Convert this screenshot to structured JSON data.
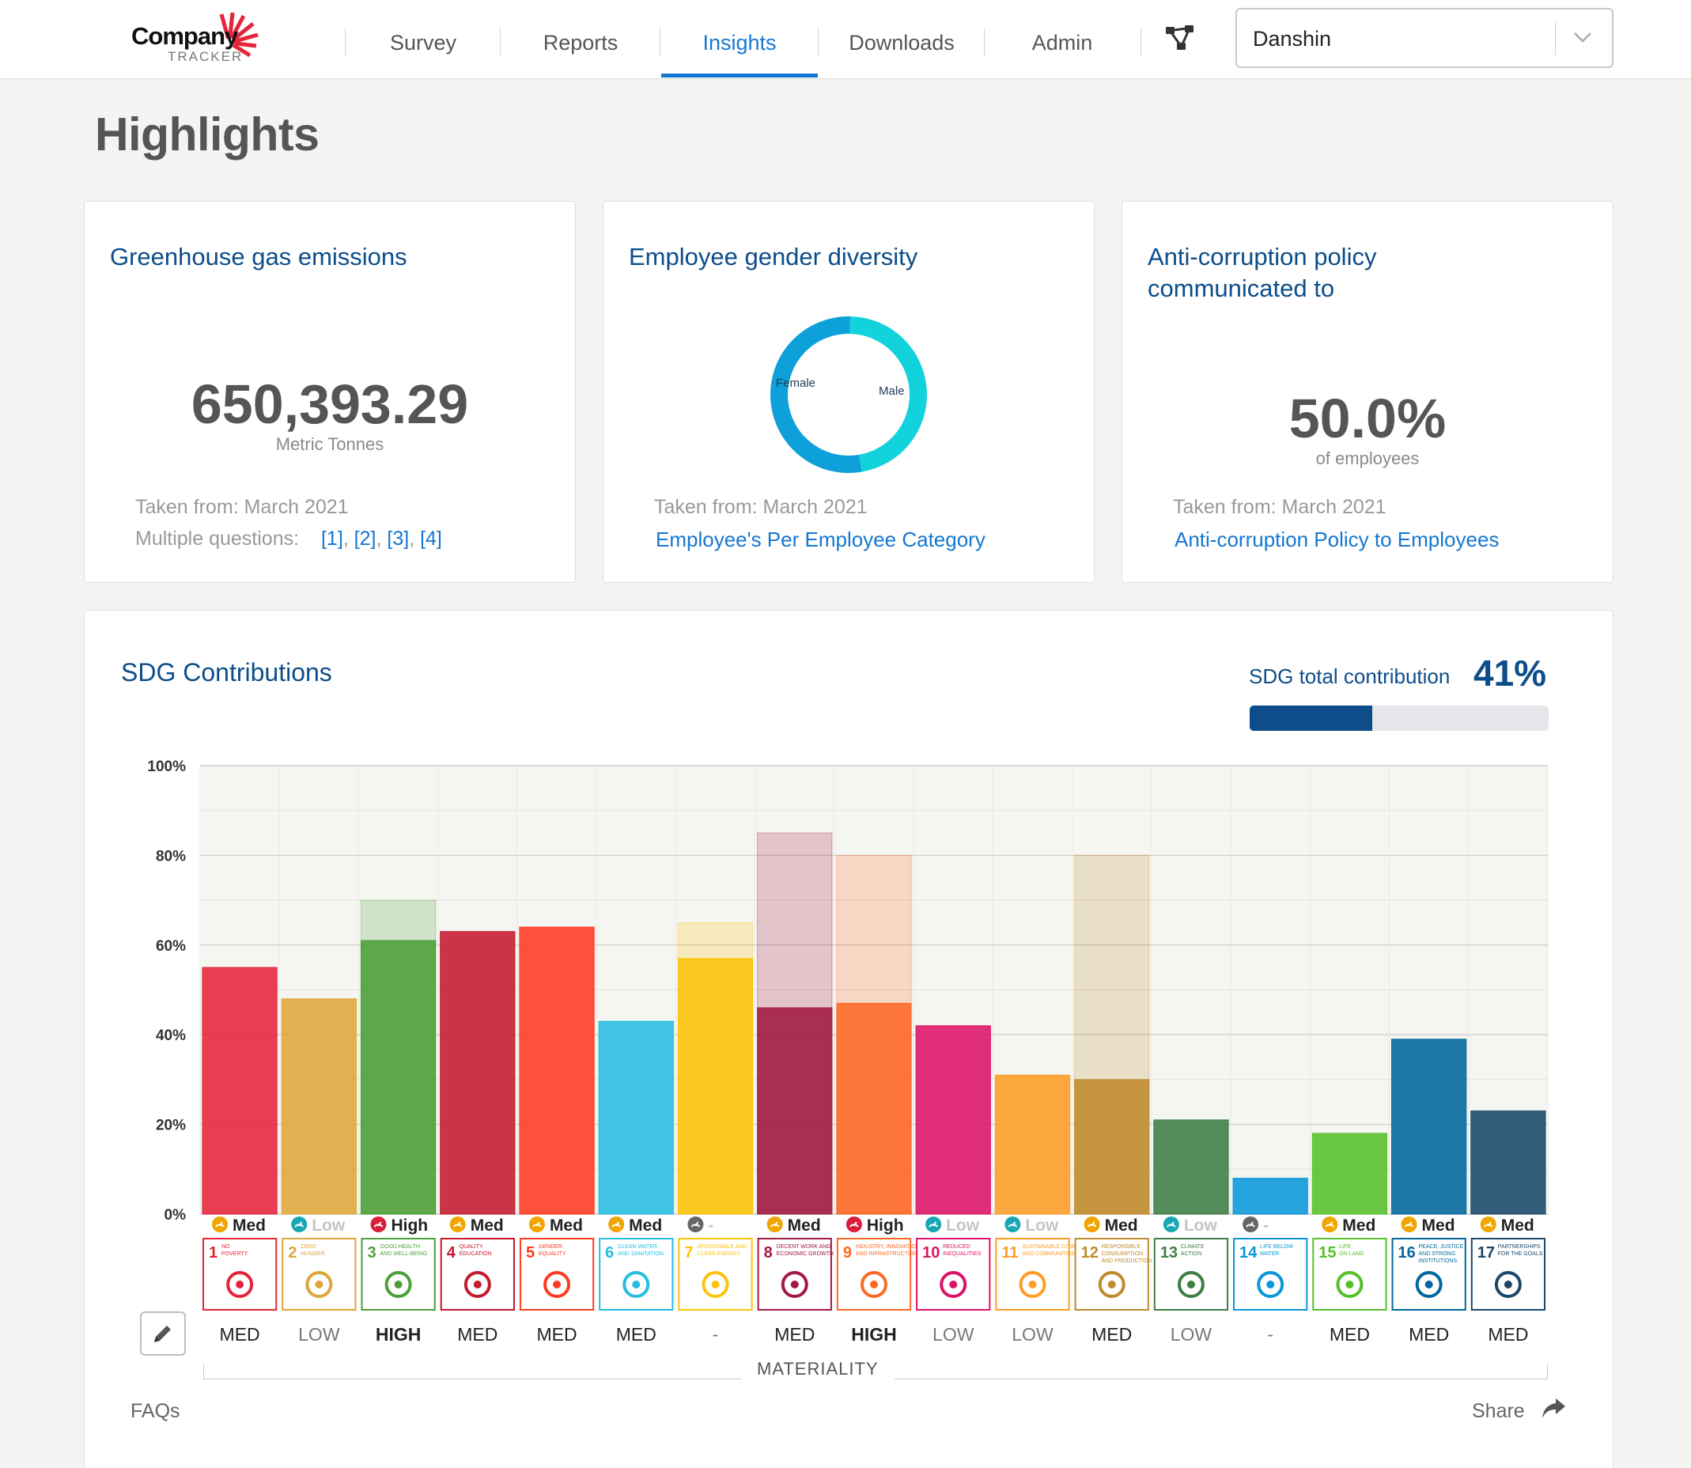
{
  "nav": {
    "logo_word": "Company",
    "logo_sub": "TRACKER",
    "items": [
      {
        "label": "Survey",
        "active": false
      },
      {
        "label": "Reports",
        "active": false
      },
      {
        "label": "Insights",
        "active": true
      },
      {
        "label": "Downloads",
        "active": false
      },
      {
        "label": "Admin",
        "active": false
      }
    ],
    "company_select": "Danshin"
  },
  "page": {
    "title": "Highlights"
  },
  "cards": {
    "ghg": {
      "title": "Greenhouse gas emissions",
      "value": "650,393.29",
      "unit": "Metric Tonnes",
      "taken": "Taken from: March 2021",
      "multiple_label": "Multiple questions:",
      "links": [
        "[1]",
        "[2]",
        "[3]",
        "[4]"
      ]
    },
    "gender": {
      "title": "Employee gender diversity",
      "segments": [
        {
          "label": "Female",
          "value": 0.47,
          "color": "#12d2dc"
        },
        {
          "label": "Male",
          "value": 0.53,
          "color": "#0ea0d8"
        }
      ],
      "taken": "Taken from: March 2021",
      "link": "Employee's Per Employee Category"
    },
    "anticorruption": {
      "title_line1": "Anti-corruption policy",
      "title_line2": "communicated to",
      "value": "50.0%",
      "unit": "of employees",
      "taken": "Taken from: March 2021",
      "link": "Anti-corruption Policy to Employees"
    }
  },
  "sdg": {
    "title": "SDG Contributions",
    "total_label": "SDG total contribution",
    "total_value": "41%",
    "total_fraction": 0.41,
    "materiality_caption": "MATERIALITY",
    "faqs": "FAQs",
    "share": "Share"
  },
  "chart_data": {
    "type": "bar",
    "ylim": [
      0,
      100
    ],
    "yticks": [
      "0%",
      "20%",
      "40%",
      "60%",
      "80%",
      "100%"
    ],
    "categories": [
      "1",
      "2",
      "3",
      "4",
      "5",
      "6",
      "7",
      "8",
      "9",
      "10",
      "11",
      "12",
      "13",
      "14",
      "15",
      "16",
      "17"
    ],
    "series": [
      {
        "name": "Contribution",
        "values": [
          55,
          48,
          61,
          63,
          64,
          43,
          57,
          46,
          47,
          42,
          31,
          30,
          21,
          8,
          18,
          39,
          23
        ]
      },
      {
        "name": "Potential",
        "values": [
          null,
          null,
          70,
          null,
          null,
          null,
          65,
          85,
          80,
          null,
          null,
          80,
          null,
          null,
          null,
          null,
          null
        ]
      }
    ],
    "colors": [
      "#e5243b",
      "#dda63a",
      "#4c9f38",
      "#c5192d",
      "#ff3a21",
      "#26bde2",
      "#fcc30b",
      "#a21942",
      "#fd6925",
      "#dd1367",
      "#fd9d24",
      "#bf8b2e",
      "#3f7e44",
      "#0a97d9",
      "#56c02b",
      "#00689d",
      "#19486a"
    ],
    "sdg_titles": [
      [
        "NO",
        "POVERTY"
      ],
      [
        "ZERO",
        "HUNGER"
      ],
      [
        "GOOD HEALTH",
        "AND WELL-BEING"
      ],
      [
        "QUALITY",
        "EDUCATION"
      ],
      [
        "GENDER",
        "EQUALITY"
      ],
      [
        "CLEAN WATER",
        "AND SANITATION"
      ],
      [
        "AFFORDABLE AND",
        "CLEAN ENERGY"
      ],
      [
        "DECENT WORK AND",
        "ECONOMIC GROWTH"
      ],
      [
        "INDUSTRY, INNOVATION",
        "AND INFRASTRUCTURE"
      ],
      [
        "REDUCED",
        "INEQUALITIES"
      ],
      [
        "SUSTAINABLE CITIES",
        "AND COMMUNITIES"
      ],
      [
        "RESPONSIBLE",
        "CONSUMPTION",
        "AND PRODUCTION"
      ],
      [
        "CLIMATE",
        "ACTION"
      ],
      [
        "LIFE BELOW",
        "WATER"
      ],
      [
        "LIFE",
        "ON LAND"
      ],
      [
        "PEACE, JUSTICE",
        "AND STRONG",
        "INSTITUTIONS"
      ],
      [
        "PARTNERSHIPS",
        "FOR THE GOALS"
      ]
    ],
    "contribution_levels": [
      "Med",
      "Low",
      "High",
      "Med",
      "Med",
      "Med",
      "-",
      "Med",
      "High",
      "Low",
      "Low",
      "Med",
      "Low",
      "-",
      "Med",
      "Med",
      "Med"
    ],
    "materiality": [
      "MED",
      "LOW",
      "HIGH",
      "MED",
      "MED",
      "MED",
      "-",
      "MED",
      "HIGH",
      "LOW",
      "LOW",
      "MED",
      "LOW",
      "-",
      "MED",
      "MED",
      "MED"
    ]
  }
}
